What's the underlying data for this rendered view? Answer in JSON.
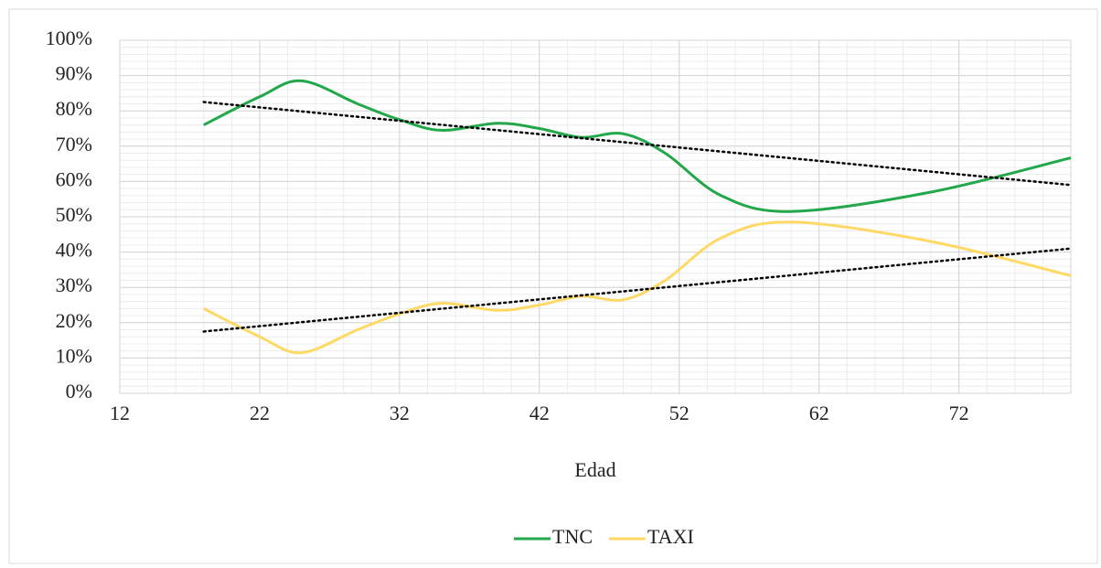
{
  "chart_data": {
    "type": "line",
    "x_label": "Edad",
    "x": [
      18,
      22,
      25,
      29,
      32,
      35,
      39,
      42,
      45,
      48,
      51,
      55,
      60,
      70,
      80
    ],
    "series": [
      {
        "name": "TNC",
        "color": "#22a84a",
        "values": [
          76,
          84,
          88.5,
          82,
          77.5,
          74.5,
          76.5,
          75,
          72.5,
          73.5,
          68,
          56,
          51.5,
          57,
          66.7
        ],
        "trendline": {
          "x": [
            18,
            80
          ],
          "values": [
            82.5,
            59
          ]
        }
      },
      {
        "name": "TAXI",
        "color": "#ffd966",
        "values": [
          24,
          16,
          11.5,
          18,
          22.5,
          25.5,
          23.5,
          25,
          27.5,
          26.5,
          32,
          44,
          48.5,
          43,
          33.3
        ],
        "trendline": {
          "x": [
            18,
            80
          ],
          "values": [
            17.5,
            41
          ]
        }
      }
    ],
    "xlim": [
      12,
      80
    ],
    "xticks": [
      12,
      22,
      32,
      42,
      52,
      62,
      72
    ],
    "ylim": [
      0,
      100
    ],
    "yticks": [
      {
        "value": 0,
        "label": "0%"
      },
      {
        "value": 10,
        "label": "10%"
      },
      {
        "value": 20,
        "label": "20%"
      },
      {
        "value": 30,
        "label": "30%"
      },
      {
        "value": 40,
        "label": "40%"
      },
      {
        "value": 50,
        "label": "50%"
      },
      {
        "value": 60,
        "label": "60%"
      },
      {
        "value": 70,
        "label": "70%"
      },
      {
        "value": 80,
        "label": "80%"
      },
      {
        "value": 90,
        "label": "90%"
      },
      {
        "value": 100,
        "label": "100%"
      }
    ],
    "grid": true,
    "minor_grid": true,
    "legend": "bottom"
  }
}
